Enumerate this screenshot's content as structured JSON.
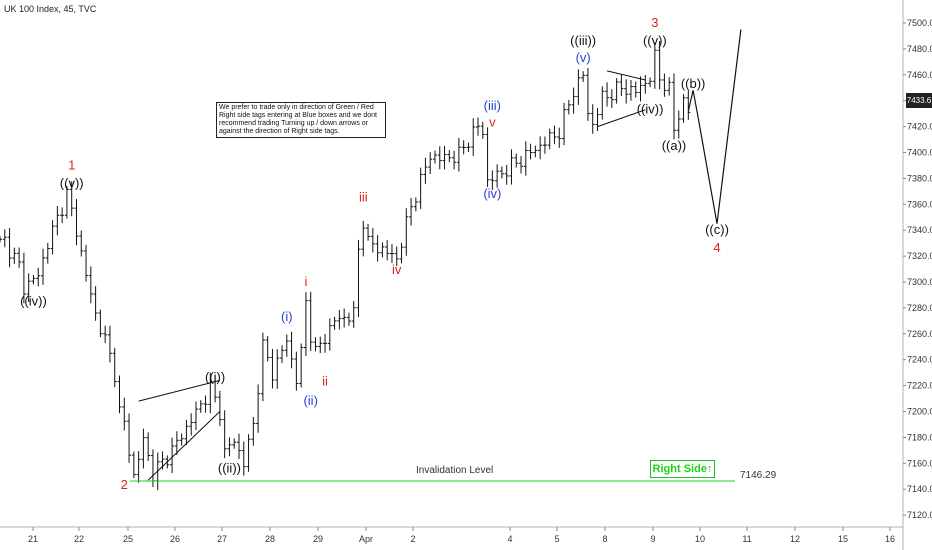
{
  "header": {
    "title": "UK 100 Index, 45, TVC"
  },
  "note": {
    "text": "We prefer to trade only in direction of Green / Red Right side tags entering at Blue boxes and we dont recommend trading Turning up / down arrows or against the direction of Right side tags."
  },
  "invalidation": {
    "label": "Invalidation Level",
    "price": "7146.29"
  },
  "right_side_tag": {
    "label": "Right Side",
    "arrow": "up-arrow"
  },
  "current_price": "7433.6",
  "colors": {
    "bars": "#111111",
    "green": "#1fd01f",
    "red": "#e02020",
    "blue": "#2a3fd0",
    "black": "#111111"
  },
  "chart_data": {
    "type": "ohlc",
    "title": "UK 100 Index, 45, TVC",
    "xlabel": "",
    "ylabel": "",
    "ylim": [
      7110,
      7510
    ],
    "y_ticks": [
      7500,
      7480,
      7460,
      7440,
      7420,
      7400,
      7380,
      7360,
      7340,
      7320,
      7300,
      7280,
      7260,
      7240,
      7220,
      7200,
      7180,
      7160,
      7140,
      7120
    ],
    "x_ticks": [
      "21",
      "22",
      "25",
      "26",
      "27",
      "28",
      "29",
      "Apr",
      "2",
      "4",
      "5",
      "8",
      "9",
      "10",
      "11",
      "12",
      "15",
      "16"
    ],
    "price_path": [
      [
        0,
        7330
      ],
      [
        1,
        7332
      ],
      [
        4,
        7312
      ],
      [
        5,
        7296
      ],
      [
        8,
        7305
      ],
      [
        10,
        7330
      ],
      [
        14,
        7368
      ],
      [
        16,
        7340
      ],
      [
        18,
        7305
      ],
      [
        20,
        7275
      ],
      [
        22,
        7255
      ],
      [
        24,
        7230
      ],
      [
        25,
        7200
      ],
      [
        26,
        7190
      ],
      [
        28,
        7150
      ],
      [
        30,
        7178
      ],
      [
        32,
        7152
      ],
      [
        36,
        7170
      ],
      [
        42,
        7205
      ],
      [
        44,
        7218
      ],
      [
        46,
        7200
      ],
      [
        47,
        7168
      ],
      [
        49,
        7178
      ],
      [
        51,
        7160
      ],
      [
        53,
        7190
      ],
      [
        55,
        7250
      ],
      [
        57,
        7230
      ],
      [
        60,
        7255
      ],
      [
        62,
        7225
      ],
      [
        63,
        7245
      ],
      [
        64,
        7285
      ],
      [
        65,
        7260
      ],
      [
        66,
        7245
      ],
      [
        70,
        7270
      ],
      [
        74,
        7275
      ],
      [
        75,
        7325
      ],
      [
        76,
        7348
      ],
      [
        77,
        7330
      ],
      [
        80,
        7325
      ],
      [
        83,
        7318
      ],
      [
        86,
        7358
      ],
      [
        88,
        7378
      ],
      [
        90,
        7398
      ],
      [
        92,
        7395
      ],
      [
        96,
        7398
      ],
      [
        98,
        7410
      ],
      [
        100,
        7420
      ],
      [
        101,
        7416
      ],
      [
        102,
        7378
      ],
      [
        104,
        7382
      ],
      [
        108,
        7392
      ],
      [
        114,
        7408
      ],
      [
        117,
        7416
      ],
      [
        120,
        7448
      ],
      [
        122,
        7460
      ],
      [
        123,
        7430
      ],
      [
        124,
        7422
      ],
      [
        126,
        7442
      ],
      [
        130,
        7450
      ],
      [
        133,
        7447
      ],
      [
        136,
        7458
      ],
      [
        137,
        7473
      ],
      [
        138,
        7458
      ],
      [
        140,
        7448
      ],
      [
        141,
        7418
      ],
      [
        143,
        7440
      ],
      [
        144,
        7432
      ]
    ],
    "forecast_path": [
      [
        144,
        7432
      ],
      [
        145,
        7448
      ],
      [
        146,
        7428
      ],
      [
        150,
        7345
      ],
      [
        155,
        7495
      ]
    ],
    "invalidation_level": 7146.29,
    "wave_labels": [
      {
        "text": "1",
        "color": "red",
        "idx": 15,
        "price": 7387
      },
      {
        "text": "((v))",
        "color": "black",
        "idx": 15,
        "price": 7373
      },
      {
        "text": "((iv))",
        "color": "black",
        "idx": 7,
        "price": 7282
      },
      {
        "text": "2",
        "color": "red",
        "idx": 26,
        "price": 7140
      },
      {
        "text": "((i))",
        "color": "black",
        "idx": 45,
        "price": 7223
      },
      {
        "text": "((ii))",
        "color": "black",
        "idx": 48,
        "price": 7153
      },
      {
        "text": "(i)",
        "color": "blue",
        "idx": 60,
        "price": 7270
      },
      {
        "text": "(ii)",
        "color": "blue",
        "idx": 65,
        "price": 7205
      },
      {
        "text": "i",
        "color": "red",
        "idx": 64,
        "price": 7297
      },
      {
        "text": "ii",
        "color": "red",
        "idx": 68,
        "price": 7220
      },
      {
        "text": "iii",
        "color": "red",
        "idx": 76,
        "price": 7362
      },
      {
        "text": "iv",
        "color": "red",
        "idx": 83,
        "price": 7306
      },
      {
        "text": "(iii)",
        "color": "blue",
        "idx": 103,
        "price": 7433
      },
      {
        "text": "v",
        "color": "red",
        "idx": 103,
        "price": 7420
      },
      {
        "text": "(iv)",
        "color": "blue",
        "idx": 103,
        "price": 7365
      },
      {
        "text": "(v)",
        "color": "blue",
        "idx": 122,
        "price": 7470
      },
      {
        "text": "((iii))",
        "color": "black",
        "idx": 122,
        "price": 7483
      },
      {
        "text": "3",
        "color": "red",
        "idx": 137,
        "price": 7497
      },
      {
        "text": "((v))",
        "color": "black",
        "idx": 137,
        "price": 7483
      },
      {
        "text": "((iv))",
        "color": "black",
        "idx": 136,
        "price": 7430
      },
      {
        "text": "((b))",
        "color": "black",
        "idx": 145,
        "price": 7450
      },
      {
        "text": "((a))",
        "color": "black",
        "idx": 141,
        "price": 7402
      },
      {
        "text": "((c))",
        "color": "black",
        "idx": 150,
        "price": 7337
      },
      {
        "text": "4",
        "color": "red",
        "idx": 150,
        "price": 7323
      }
    ],
    "trendlines": [
      [
        [
          29,
          7208
        ],
        [
          46,
          7224
        ]
      ],
      [
        [
          31,
          7147
        ],
        [
          46,
          7200
        ]
      ],
      [
        [
          127,
          7463
        ],
        [
          135,
          7456
        ]
      ],
      [
        [
          125,
          7420
        ],
        [
          135,
          7433
        ]
      ]
    ]
  }
}
